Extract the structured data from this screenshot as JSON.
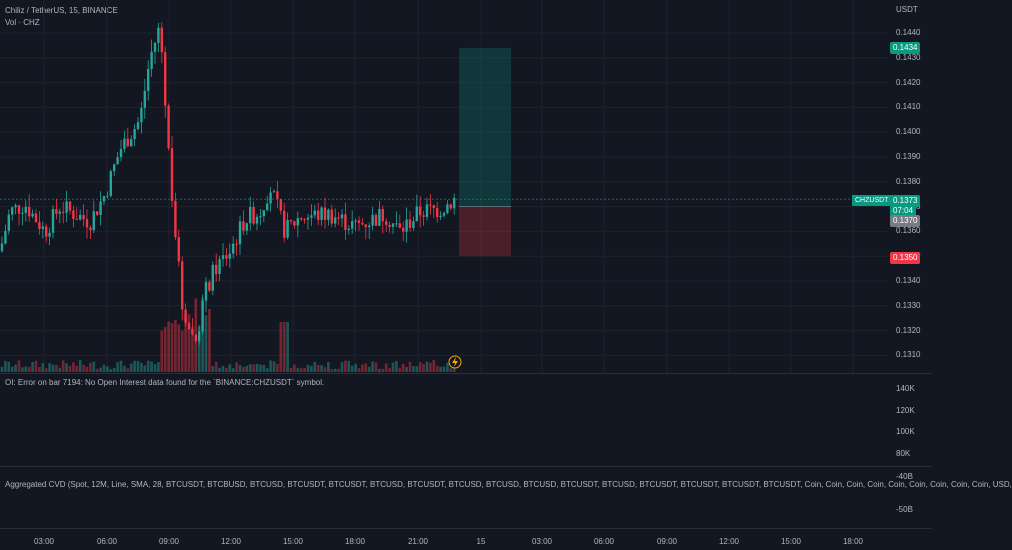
{
  "header": {
    "symbol_line": "Chiliz / TetherUS, 15, BINANCE",
    "volume_line": "Vol · CHZ"
  },
  "price_axis": {
    "currency": "USDT",
    "ticks": [
      "0.1440",
      "0.1430",
      "0.1420",
      "0.1410",
      "0.1400",
      "0.1390",
      "0.1380",
      "0.1370",
      "0.1360",
      "0.1350",
      "0.1340",
      "0.1330",
      "0.1320",
      "0.1310"
    ],
    "tags": {
      "take_profit": "0.1434",
      "current_price": "0.1373",
      "countdown": "07:04",
      "entry": "0.1370",
      "stop_loss": "0.1350"
    },
    "symbol_tag": "CHZUSDT"
  },
  "oi_pane": {
    "message": "OI: Error on bar 7194: No Open Interest data found for the `BINANCE:CHZUSDT` symbol.",
    "ticks": [
      "140K",
      "120K",
      "100K",
      "80K"
    ]
  },
  "cvd_pane": {
    "label": "Aggregated CVD (Spot, 12M, Line, SMA, 28, BTCUSDT, BTCBUSD, BTCUSD, BTCUSDT, BTCUSDT, BTCUSD, BTCUSDT, BTCUSD, BTCUSD, BTCUSD, BTCUSDT, BTCUSD, BTCUSDT, BTCUSDT, BTCUSDT, BTCUSDT, Coin, Coin, Coin, Coin, Coin, Coin, Coin, Coin, Coin, USD,",
    "ticks": [
      "-40B",
      "-50B"
    ]
  },
  "time_axis": {
    "labels": [
      "03:00",
      "06:00",
      "09:00",
      "12:00",
      "15:00",
      "18:00",
      "21:00",
      "15",
      "03:00",
      "06:00",
      "09:00",
      "12:00",
      "15:00",
      "18:00"
    ]
  },
  "colors": {
    "background": "#131722",
    "up": "#26a69a",
    "down": "#f23645",
    "take_profit_zone": "#089981",
    "stop_zone": "#f23645"
  },
  "chart_data": {
    "type": "candlestick",
    "y_range": [
      0.1305,
      0.1445
    ],
    "position": {
      "entry": 0.137,
      "target": 0.1434,
      "stop": 0.135
    }
  }
}
